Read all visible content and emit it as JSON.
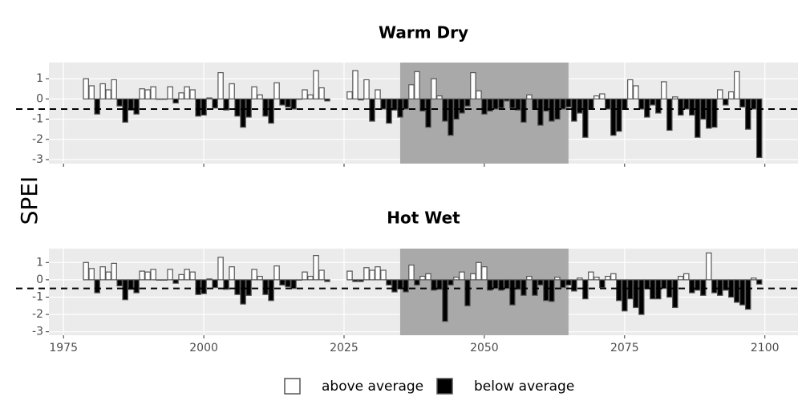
{
  "ylabel": "SPEI",
  "legend": [
    {
      "name": "above average",
      "color": "#ffffff"
    },
    {
      "name": "below average",
      "color": "#000000"
    }
  ],
  "chart_data": [
    {
      "type": "bar",
      "title": "Warm Dry",
      "x": [
        1979,
        1980,
        1981,
        1982,
        1983,
        1984,
        1985,
        1986,
        1987,
        1988,
        1989,
        1990,
        1991,
        1992,
        1993,
        1994,
        1995,
        1996,
        1997,
        1998,
        1999,
        2000,
        2001,
        2002,
        2003,
        2004,
        2005,
        2006,
        2007,
        2008,
        2009,
        2010,
        2011,
        2012,
        2013,
        2014,
        2015,
        2016,
        2017,
        2018,
        2019,
        2020,
        2021,
        2022,
        2026,
        2027,
        2028,
        2029,
        2030,
        2031,
        2032,
        2033,
        2034,
        2035,
        2036,
        2037,
        2038,
        2039,
        2040,
        2041,
        2042,
        2043,
        2044,
        2045,
        2046,
        2047,
        2048,
        2049,
        2050,
        2051,
        2052,
        2053,
        2054,
        2055,
        2056,
        2057,
        2058,
        2059,
        2060,
        2061,
        2062,
        2063,
        2064,
        2065,
        2066,
        2067,
        2068,
        2069,
        2070,
        2071,
        2072,
        2073,
        2074,
        2075,
        2076,
        2077,
        2078,
        2079,
        2080,
        2081,
        2082,
        2083,
        2084,
        2085,
        2086,
        2087,
        2088,
        2089,
        2090,
        2091,
        2092,
        2093,
        2094,
        2095,
        2096,
        2097,
        2098,
        2099
      ],
      "values": [
        1.0,
        0.65,
        -0.75,
        0.75,
        0.45,
        0.95,
        -0.35,
        -1.15,
        -0.55,
        -0.75,
        0.5,
        0.45,
        0.6,
        0.0,
        0.0,
        0.6,
        -0.2,
        0.3,
        0.6,
        0.45,
        -0.85,
        -0.8,
        0.05,
        -0.45,
        1.3,
        -0.55,
        0.75,
        -0.85,
        -1.4,
        -0.9,
        0.6,
        0.2,
        -0.85,
        -1.2,
        0.8,
        -0.3,
        -0.4,
        -0.5,
        0.0,
        0.45,
        0.2,
        1.4,
        0.55,
        -0.1,
        0.35,
        1.4,
        -0.05,
        0.95,
        -1.1,
        0.45,
        -0.5,
        -1.2,
        -0.55,
        -0.9,
        -0.5,
        0.7,
        1.35,
        -0.6,
        -1.4,
        1.0,
        0.15,
        -1.1,
        -1.8,
        -1.0,
        -0.7,
        -0.35,
        1.3,
        0.4,
        -0.75,
        -0.6,
        -0.5,
        -0.45,
        -0.1,
        -0.45,
        -0.55,
        -1.15,
        0.2,
        -0.5,
        -1.3,
        -0.6,
        -1.1,
        -1.0,
        -0.5,
        -0.4,
        -1.1,
        -0.7,
        -1.9,
        -0.5,
        0.15,
        0.25,
        -0.5,
        -1.8,
        -1.6,
        -0.5,
        0.95,
        0.65,
        -0.5,
        -0.9,
        -0.3,
        -0.7,
        0.85,
        -1.55,
        0.1,
        -0.8,
        -0.5,
        -0.8,
        -1.9,
        -1.0,
        -1.45,
        -1.4,
        0.45,
        -0.3,
        0.35,
        1.35,
        -0.4,
        -1.5,
        -0.5,
        -2.9
      ],
      "xlim": [
        1972.4,
        2105.9
      ],
      "xticks": [
        1975,
        2000,
        2025,
        2050,
        2075,
        2100
      ],
      "xtick_labels": false,
      "ylim": [
        -3.2,
        1.8
      ],
      "yticks": [
        -3,
        -2,
        -1,
        0,
        1
      ],
      "highlight": [
        2035,
        2065
      ],
      "reference_line": -0.5,
      "grid": true
    },
    {
      "type": "bar",
      "title": "Hot Wet",
      "x": [
        1979,
        1980,
        1981,
        1982,
        1983,
        1984,
        1985,
        1986,
        1987,
        1988,
        1989,
        1990,
        1991,
        1992,
        1993,
        1994,
        1995,
        1996,
        1997,
        1998,
        1999,
        2000,
        2001,
        2002,
        2003,
        2004,
        2005,
        2006,
        2007,
        2008,
        2009,
        2010,
        2011,
        2012,
        2013,
        2014,
        2015,
        2016,
        2017,
        2018,
        2019,
        2020,
        2021,
        2022,
        2026,
        2027,
        2028,
        2029,
        2030,
        2031,
        2032,
        2033,
        2034,
        2035,
        2036,
        2037,
        2038,
        2039,
        2040,
        2041,
        2042,
        2043,
        2044,
        2045,
        2046,
        2047,
        2048,
        2049,
        2050,
        2051,
        2052,
        2053,
        2054,
        2055,
        2056,
        2057,
        2058,
        2059,
        2060,
        2061,
        2062,
        2063,
        2064,
        2065,
        2066,
        2067,
        2068,
        2069,
        2070,
        2071,
        2072,
        2073,
        2074,
        2075,
        2076,
        2077,
        2078,
        2079,
        2080,
        2081,
        2082,
        2083,
        2084,
        2085,
        2086,
        2087,
        2088,
        2089,
        2090,
        2091,
        2092,
        2093,
        2094,
        2095,
        2096,
        2097,
        2098,
        2099
      ],
      "values": [
        1.0,
        0.65,
        -0.75,
        0.75,
        0.45,
        0.95,
        -0.35,
        -1.15,
        -0.55,
        -0.75,
        0.5,
        0.45,
        0.6,
        0.0,
        0.0,
        0.6,
        -0.2,
        0.3,
        0.6,
        0.45,
        -0.85,
        -0.8,
        0.05,
        -0.45,
        1.3,
        -0.55,
        0.75,
        -0.85,
        -1.4,
        -0.9,
        0.6,
        0.2,
        -0.85,
        -1.2,
        0.8,
        -0.3,
        -0.4,
        -0.5,
        0.0,
        0.45,
        0.2,
        1.4,
        0.55,
        -0.1,
        0.5,
        -0.1,
        -0.1,
        0.7,
        0.55,
        0.75,
        0.55,
        -0.3,
        -0.7,
        -0.5,
        -0.7,
        0.85,
        -0.3,
        0.2,
        0.35,
        -0.6,
        -0.55,
        -2.4,
        -0.3,
        0.15,
        0.45,
        -1.5,
        0.35,
        1.0,
        0.75,
        -0.6,
        -0.5,
        -0.6,
        -0.5,
        -1.45,
        -0.55,
        -0.9,
        0.2,
        -0.9,
        -0.3,
        -1.2,
        -1.25,
        0.15,
        -0.45,
        -0.3,
        -0.65,
        0.1,
        -1.1,
        0.45,
        0.15,
        -0.45,
        0.2,
        0.35,
        -1.2,
        -1.8,
        -1.1,
        -1.6,
        -2.0,
        -0.5,
        -1.1,
        -1.1,
        -0.5,
        -1.0,
        -1.6,
        0.2,
        0.35,
        -0.75,
        -0.6,
        -0.9,
        1.55,
        -0.75,
        -0.9,
        -0.6,
        -1.0,
        -1.3,
        -1.45,
        -1.7,
        0.1,
        -0.25
      ],
      "xlim": [
        1972.4,
        2105.9
      ],
      "xticks": [
        1975,
        2000,
        2025,
        2050,
        2075,
        2100
      ],
      "xtick_labels": true,
      "ylim": [
        -3.2,
        1.8
      ],
      "yticks": [
        -3,
        -2,
        -1,
        0,
        1
      ],
      "highlight": [
        2035,
        2065
      ],
      "reference_line": -0.5,
      "grid": true
    }
  ]
}
